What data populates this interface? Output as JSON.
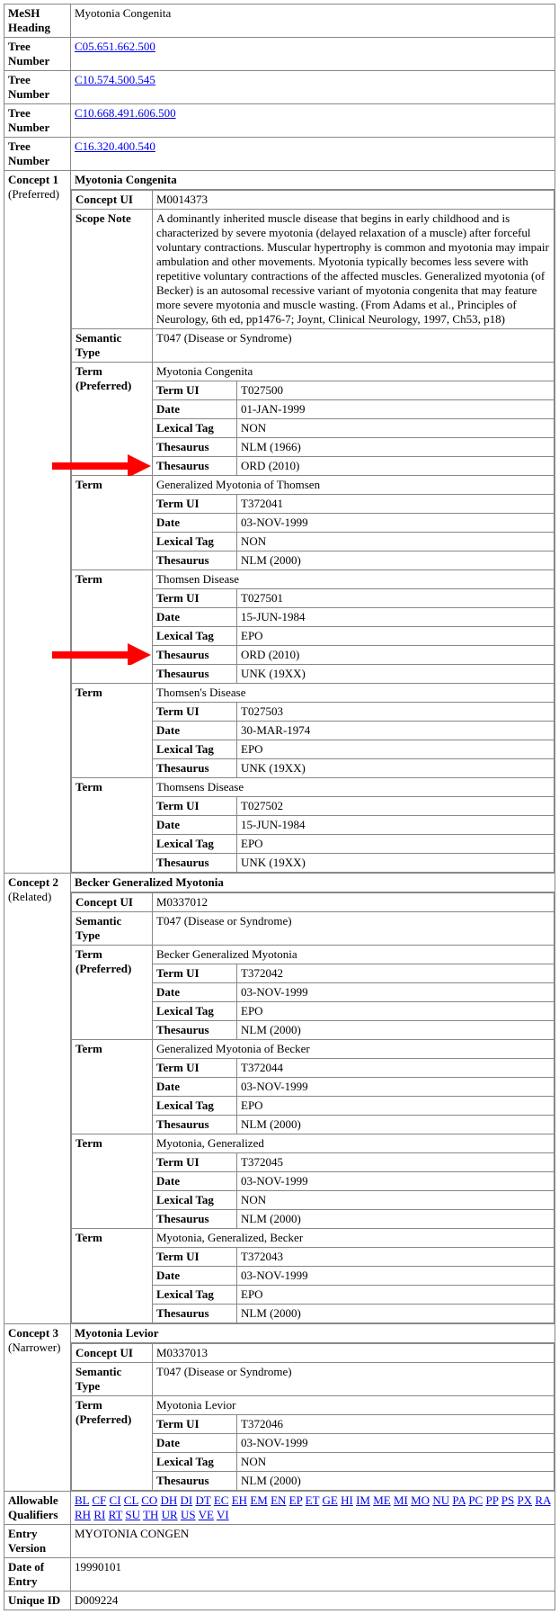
{
  "labels": {
    "meshHeading": "MeSH Heading",
    "treeNumber": "Tree Number",
    "conceptUI": "Concept UI",
    "scopeNote": "Scope Note",
    "semanticType": "Semantic Type",
    "termPreferred": "Term (Preferred)",
    "term": "Term",
    "termUI": "Term UI",
    "date": "Date",
    "lexicalTag": "Lexical Tag",
    "thesaurus": "Thesaurus",
    "allowableQualifiers": "Allowable Qualifiers",
    "entryVersion": "Entry Version",
    "dateOfEntry": "Date of Entry",
    "uniqueID": "Unique ID",
    "concept1": "Concept 1",
    "concept1Sub": "(Preferred)",
    "concept2": "Concept 2",
    "concept2Sub": "(Related)",
    "concept3": "Concept 3",
    "concept3Sub": "(Narrower)"
  },
  "meshHeading": "Myotonia Congenita",
  "treeNumbers": [
    "C05.651.662.500",
    "C10.574.500.545",
    "C10.668.491.606.500",
    "C16.320.400.540"
  ],
  "concept1": {
    "name": "Myotonia Congenita",
    "conceptUI": "M0014373",
    "scopeNote": "A dominantly inherited muscle disease that begins in early childhood and is characterized by severe myotonia (delayed relaxation of a muscle) after forceful voluntary contractions. Muscular hypertrophy is common and myotonia may impair ambulation and other movements. Myotonia typically becomes less severe with repetitive voluntary contractions of the affected muscles. Generalized myotonia (of Becker) is an autosomal recessive variant of myotonia congenita that may feature more severe myotonia and muscle wasting. (From Adams et al., Principles of Neurology, 6th ed, pp1476-7; Joynt, Clinical Neurology, 1997, Ch53, p18)",
    "semanticType": "T047 (Disease or Syndrome)",
    "terms": [
      {
        "pref": true,
        "name": "Myotonia Congenita",
        "termUI": "T027500",
        "date": "01-JAN-1999",
        "lexicalTag": "NON",
        "thesaurus": [
          "NLM (1966)",
          "ORD (2010)"
        ]
      },
      {
        "pref": false,
        "name": "Generalized Myotonia of Thomsen",
        "termUI": "T372041",
        "date": "03-NOV-1999",
        "lexicalTag": "NON",
        "thesaurus": [
          "NLM (2000)"
        ]
      },
      {
        "pref": false,
        "name": "Thomsen Disease",
        "termUI": "T027501",
        "date": "15-JUN-1984",
        "lexicalTag": "EPO",
        "thesaurus": [
          "ORD (2010)",
          "UNK (19XX)"
        ]
      },
      {
        "pref": false,
        "name": "Thomsen's Disease",
        "termUI": "T027503",
        "date": "30-MAR-1974",
        "lexicalTag": "EPO",
        "thesaurus": [
          "UNK (19XX)"
        ]
      },
      {
        "pref": false,
        "name": "Thomsens Disease",
        "termUI": "T027502",
        "date": "15-JUN-1984",
        "lexicalTag": "EPO",
        "thesaurus": [
          "UNK (19XX)"
        ]
      }
    ]
  },
  "concept2": {
    "name": "Becker Generalized Myotonia",
    "conceptUI": "M0337012",
    "semanticType": "T047 (Disease or Syndrome)",
    "terms": [
      {
        "pref": true,
        "name": "Becker Generalized Myotonia",
        "termUI": "T372042",
        "date": "03-NOV-1999",
        "lexicalTag": "EPO",
        "thesaurus": [
          "NLM (2000)"
        ]
      },
      {
        "pref": false,
        "name": "Generalized Myotonia of Becker",
        "termUI": "T372044",
        "date": "03-NOV-1999",
        "lexicalTag": "EPO",
        "thesaurus": [
          "NLM (2000)"
        ]
      },
      {
        "pref": false,
        "name": "Myotonia, Generalized",
        "termUI": "T372045",
        "date": "03-NOV-1999",
        "lexicalTag": "NON",
        "thesaurus": [
          "NLM (2000)"
        ]
      },
      {
        "pref": false,
        "name": "Myotonia, Generalized, Becker",
        "termUI": "T372043",
        "date": "03-NOV-1999",
        "lexicalTag": "EPO",
        "thesaurus": [
          "NLM (2000)"
        ]
      }
    ]
  },
  "concept3": {
    "name": "Myotonia Levior",
    "conceptUI": "M0337013",
    "semanticType": "T047 (Disease or Syndrome)",
    "terms": [
      {
        "pref": true,
        "name": "Myotonia Levior",
        "termUI": "T372046",
        "date": "03-NOV-1999",
        "lexicalTag": "NON",
        "thesaurus": [
          "NLM (2000)"
        ]
      }
    ]
  },
  "allowableQualifiers": [
    "BL",
    "CF",
    "CI",
    "CL",
    "CO",
    "DH",
    "DI",
    "DT",
    "EC",
    "EH",
    "EM",
    "EN",
    "EP",
    "ET",
    "GE",
    "HI",
    "IM",
    "ME",
    "MI",
    "MO",
    "NU",
    "PA",
    "PC",
    "PP",
    "PS",
    "PX",
    "RA",
    "RH",
    "RI",
    "RT",
    "SU",
    "TH",
    "UR",
    "US",
    "VE",
    "VI"
  ],
  "entryVersion": "MYOTONIA CONGEN",
  "dateOfEntry": "19990101",
  "uniqueID": "D009224",
  "arrowColor": "#ff0000"
}
